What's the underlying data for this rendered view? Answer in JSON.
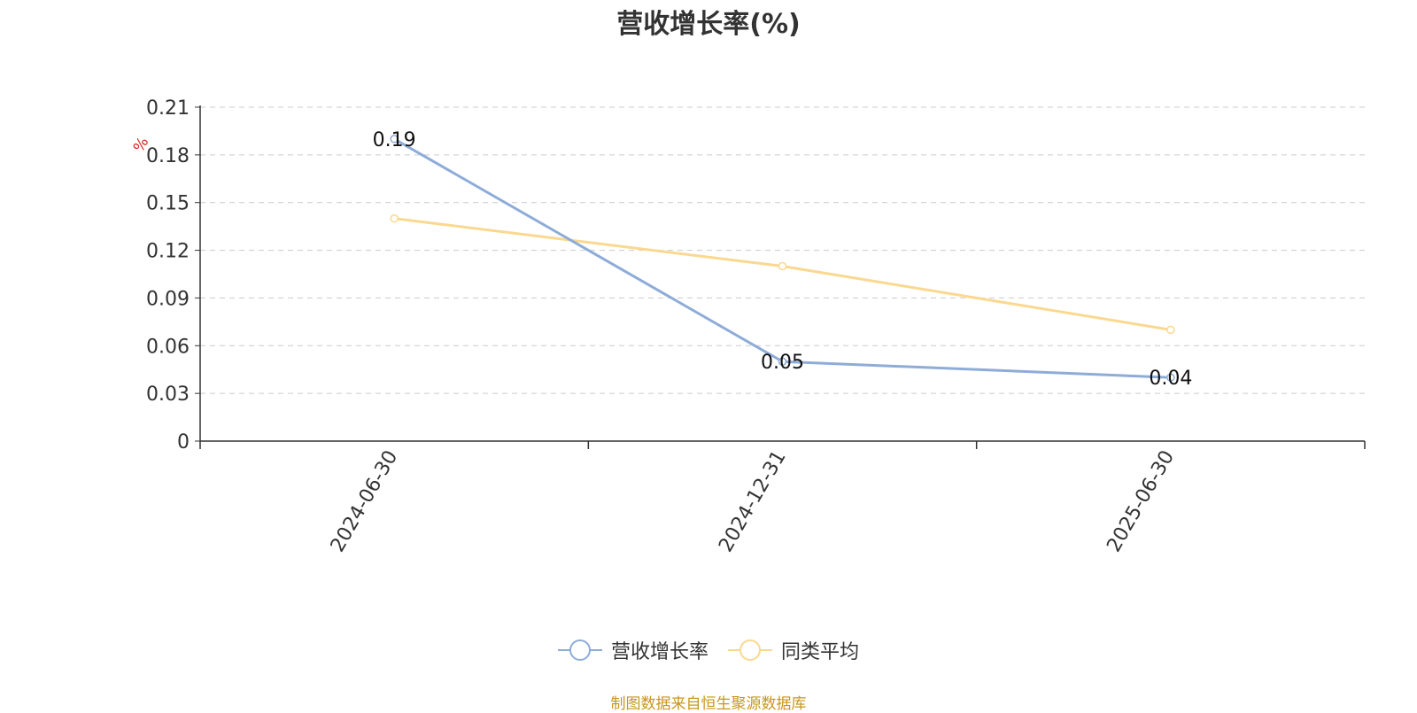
{
  "chart_data": {
    "type": "line",
    "title": "营收增长率(%)",
    "ylabel": "%",
    "xlabel": "",
    "categories": [
      "2024-06-30",
      "2024-12-31",
      "2025-06-30"
    ],
    "series": [
      {
        "name": "营收增长率",
        "values": [
          0.19,
          0.05,
          0.04
        ],
        "color": "#8eacd8",
        "data_labels": [
          "0.19",
          "0.05",
          "0.04"
        ]
      },
      {
        "name": "同类平均",
        "values": [
          0.14,
          0.11,
          0.07
        ],
        "color": "#fbd88f"
      }
    ],
    "ylim": [
      0,
      0.21
    ],
    "yticks": [
      "0",
      "0.03",
      "0.06",
      "0.09",
      "0.12",
      "0.15",
      "0.18",
      "0.21"
    ],
    "grid": true,
    "legend_position": "bottom-center"
  },
  "footer": {
    "source": "制图数据来自恒生聚源数据库"
  }
}
